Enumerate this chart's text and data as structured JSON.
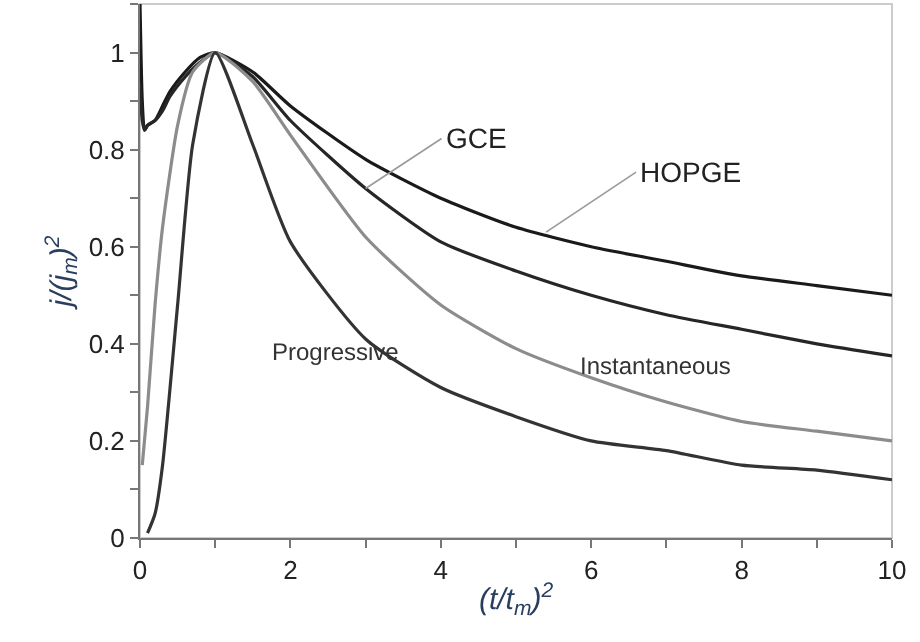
{
  "chart_data": {
    "type": "line",
    "xlabel": "(t/t$_{m}$)$^{2}$",
    "ylabel": "j/(j$_{m}$)$^{2}$",
    "xlim": [
      0,
      10
    ],
    "xticks": [
      0,
      2,
      4,
      6,
      8,
      10
    ],
    "ylim": [
      0,
      1.1
    ],
    "yticks": [
      0,
      0.2,
      0.4,
      0.6,
      0.8,
      1
    ],
    "grid": false,
    "marker": "none",
    "line_style": "solid",
    "series": [
      {
        "color": "#1a1a1a",
        "x": [
          0,
          0.03,
          0.06,
          0.1,
          0.2,
          0.3,
          0.4,
          0.6,
          0.8,
          1,
          1.5,
          2,
          3,
          4,
          5,
          6,
          7,
          8,
          9,
          10
        ],
        "values": [
          1.1,
          0.9,
          0.84,
          0.85,
          0.86,
          0.89,
          0.92,
          0.96,
          0.99,
          1,
          0.96,
          0.89,
          0.78,
          0.7,
          0.64,
          0.6,
          0.57,
          0.54,
          0.52,
          0.5
        ]
      },
      {
        "color": "#262626",
        "x": [
          0,
          0.03,
          0.06,
          0.1,
          0.2,
          0.3,
          0.4,
          0.6,
          0.8,
          1,
          1.5,
          2,
          3,
          4,
          5,
          6,
          7,
          8,
          9,
          10
        ],
        "values": [
          0.93,
          0.86,
          0.84,
          0.85,
          0.86,
          0.88,
          0.91,
          0.95,
          0.98,
          1,
          0.95,
          0.86,
          0.72,
          0.61,
          0.55,
          0.5,
          0.46,
          0.43,
          0.4,
          0.375
        ]
      },
      {
        "color": "#8c8c8c",
        "x": [
          0.03,
          0.1,
          0.2,
          0.3,
          0.5,
          0.7,
          1,
          1.5,
          2,
          3,
          4,
          5,
          6,
          7,
          8,
          9,
          10
        ],
        "values": [
          0.15,
          0.27,
          0.48,
          0.64,
          0.85,
          0.96,
          1,
          0.94,
          0.83,
          0.62,
          0.48,
          0.39,
          0.33,
          0.28,
          0.24,
          0.22,
          0.2
        ]
      },
      {
        "color": "#333333",
        "x": [
          0.1,
          0.2,
          0.3,
          0.5,
          0.7,
          1,
          1.5,
          2,
          3,
          4,
          5,
          6,
          7,
          8,
          9,
          10
        ],
        "values": [
          0.01,
          0.05,
          0.15,
          0.48,
          0.81,
          1,
          0.81,
          0.61,
          0.41,
          0.31,
          0.25,
          0.2,
          0.18,
          0.15,
          0.14,
          0.12
        ]
      }
    ],
    "annotations": [
      {
        "text": "GCE",
        "x": 3.0,
        "y": 0.72
      },
      {
        "text": "HOPGE",
        "x": 5.4,
        "y": 0.63
      },
      "Progressive",
      "Instantaneous"
    ]
  }
}
